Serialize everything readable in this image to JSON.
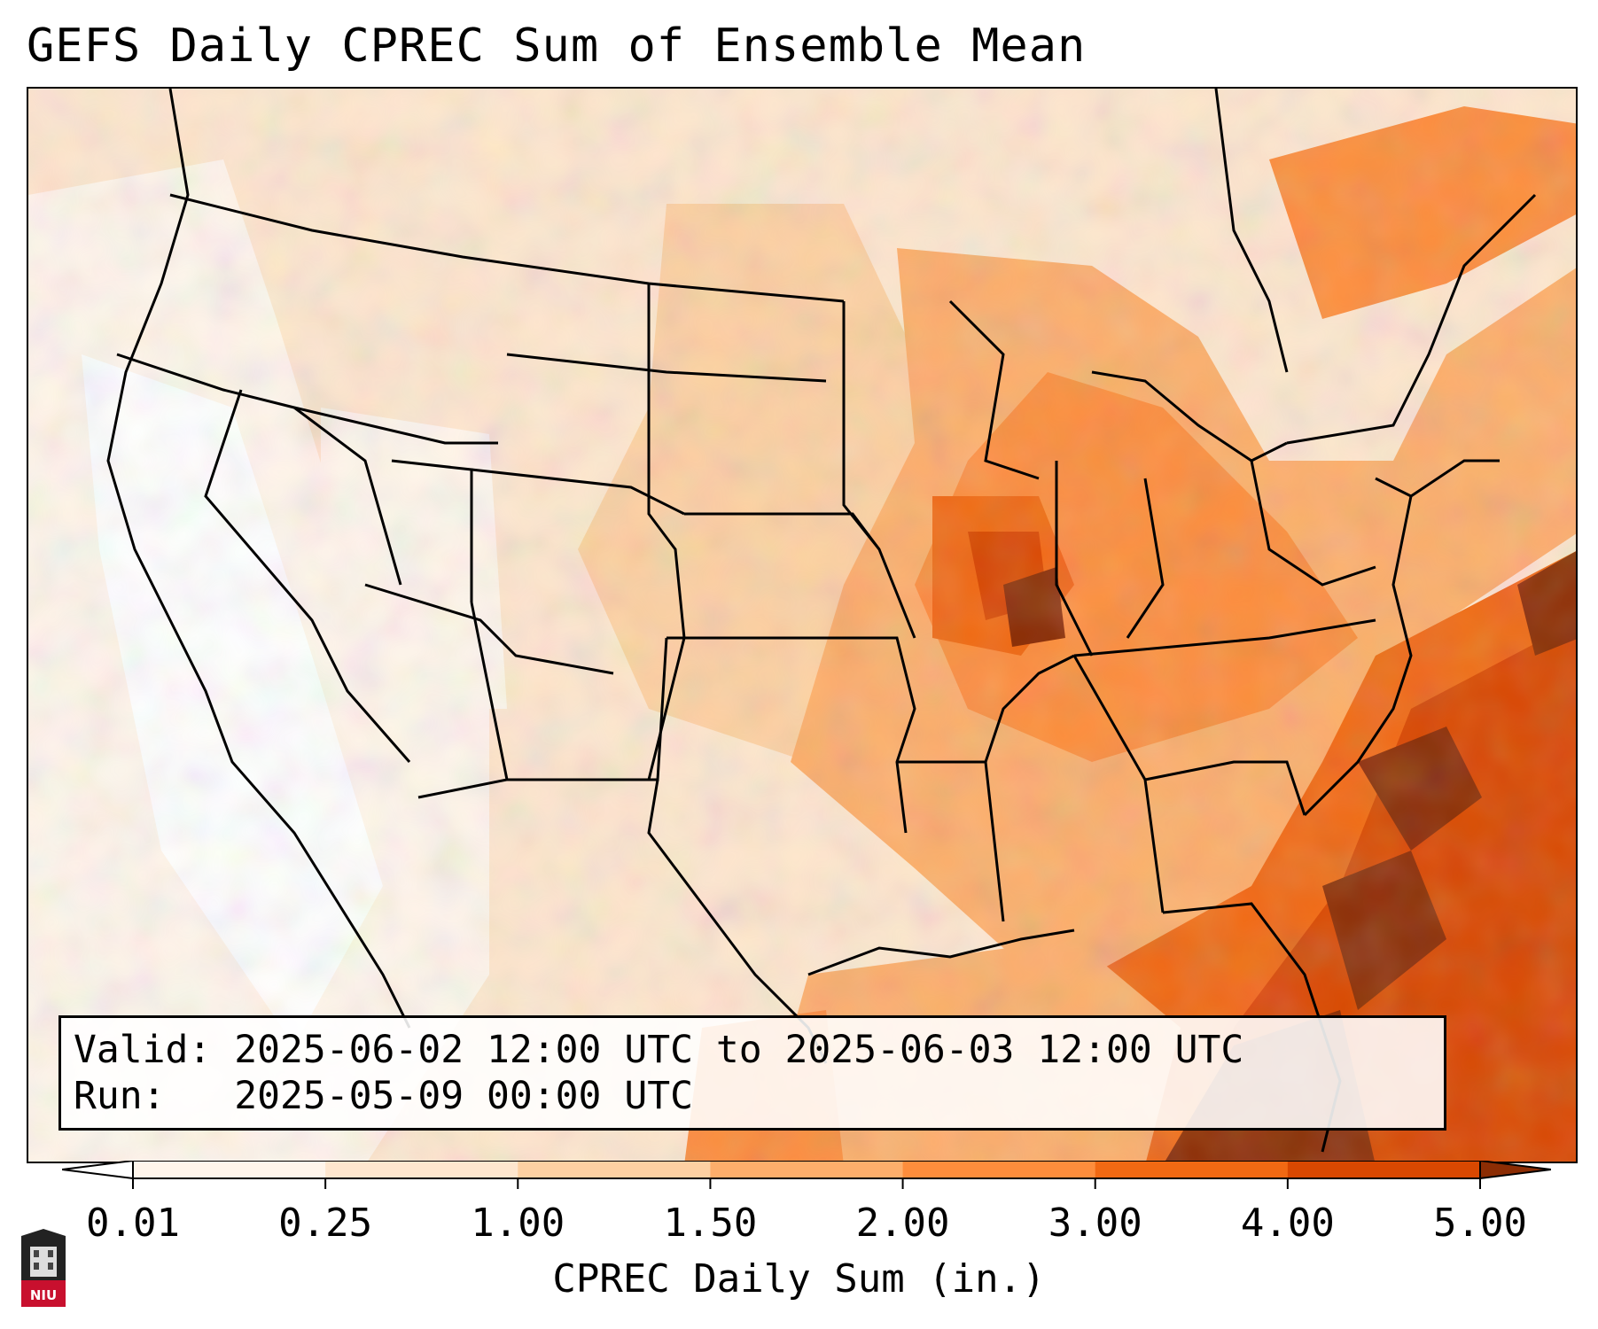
{
  "title": "GEFS Daily CPREC Sum of Ensemble Mean",
  "info": {
    "valid_line": "Valid: 2025-06-02 12:00 UTC to 2025-06-03 12:00 UTC",
    "run_line": "Run:   2025-05-09 00:00 UTC"
  },
  "colorbar": {
    "label": "CPREC Daily Sum (in.)",
    "ticks": [
      "0.01",
      "0.25",
      "1.00",
      "1.50",
      "2.00",
      "3.00",
      "4.00",
      "5.00"
    ],
    "colors": [
      "#fff5eb",
      "#fee6ce",
      "#fdd0a2",
      "#fdae6b",
      "#fd8d3c",
      "#f16913",
      "#d94801",
      "#8c2d04"
    ],
    "under_color": "#ffffff",
    "over_color": "#8c2d04"
  },
  "logo": {
    "text": "NIU",
    "icon": "university-tower-icon"
  }
}
